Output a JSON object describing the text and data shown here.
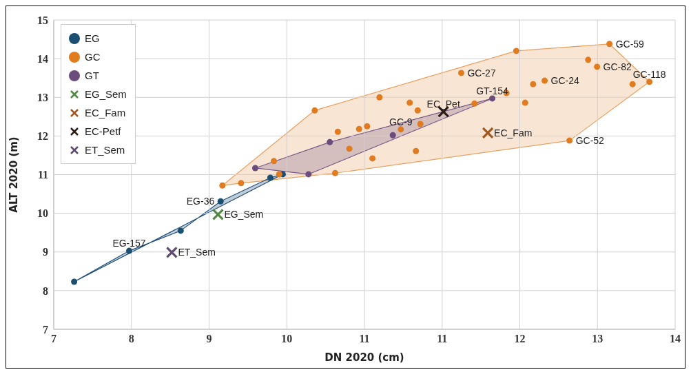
{
  "chart_data": {
    "type": "scatter",
    "xlabel": "DN 2020 (cm)",
    "ylabel": "ALT 2020 (m)",
    "xlim": [
      7,
      14
    ],
    "xticks": [
      7,
      {
        "value": 7.875,
        "label": "8"
      },
      {
        "value": 8.75,
        "label": "9"
      },
      {
        "value": 9.625,
        "label": "10"
      },
      {
        "value": 10.5,
        "label": "11"
      },
      {
        "value": 11.375,
        "label": "11"
      },
      {
        "value": 12.25,
        "label": "12"
      },
      {
        "value": 13.125,
        "label": "13"
      },
      14
    ],
    "ylim": [
      7,
      15
    ],
    "yticks": [
      7,
      8,
      9,
      10,
      11,
      12,
      13,
      14,
      15
    ],
    "grid": true,
    "legend": "top left",
    "series": [
      {
        "type": "area",
        "color": "#e8a060",
        "x": [
          8.9,
          9.94,
          12.21,
          13.26,
          13.71,
          12.81,
          10.17,
          9.11
        ],
        "values": [
          10.72,
          12.66,
          14.2,
          14.38,
          13.4,
          11.88,
          11.04,
          10.78
        ]
      },
      {
        "type": "area",
        "color": "#7a5a88",
        "x": [
          9.27,
          10.11,
          11.94,
          9.87
        ],
        "values": [
          11.17,
          11.84,
          12.97,
          11.01
        ]
      },
      {
        "type": "area",
        "color": "#1f4e79",
        "x": [
          7.23,
          7.85,
          8.43,
          8.88,
          9.44,
          9.58
        ],
        "values": [
          8.23,
          9.03,
          9.55,
          10.31,
          10.92,
          11.01
        ]
      },
      {
        "name": "EG",
        "marker": "circle",
        "color": "#1b4f72",
        "x": [
          7.23,
          7.85,
          8.43,
          8.88,
          9.44,
          9.58
        ],
        "values": [
          8.23,
          9.03,
          9.55,
          10.31,
          10.92,
          11.01
        ]
      },
      {
        "name": "GC",
        "marker": "circle",
        "color": "#e07b20",
        "x": [
          8.9,
          9.11,
          9.48,
          9.54,
          9.94,
          10.17,
          10.2,
          10.33,
          10.44,
          10.53,
          10.59,
          10.67,
          10.91,
          11.01,
          11.08,
          11.1,
          11.13,
          11.59,
          11.74,
          12.1,
          12.21,
          12.31,
          12.4,
          12.53,
          12.81,
          13.02,
          13.12,
          13.26,
          13.52,
          13.71
        ],
        "values": [
          10.72,
          10.78,
          11.35,
          11.01,
          12.66,
          11.04,
          12.11,
          11.67,
          12.18,
          12.25,
          11.42,
          13.0,
          12.17,
          12.86,
          11.61,
          12.66,
          12.31,
          13.63,
          12.84,
          13.11,
          14.2,
          12.86,
          13.34,
          13.43,
          11.88,
          13.97,
          13.79,
          14.38,
          13.34,
          13.4
        ]
      },
      {
        "name": "GT",
        "marker": "circle",
        "color": "#6b4c7a",
        "x": [
          9.27,
          9.87,
          10.11,
          10.82,
          11.94
        ],
        "values": [
          11.17,
          11.01,
          11.84,
          12.02,
          12.97
        ]
      },
      {
        "name": "EG_Sem",
        "marker": "cross",
        "color": "#4e8a3e",
        "x": [
          8.85
        ],
        "values": [
          9.97
        ]
      },
      {
        "name": "EC_Fam",
        "marker": "cross",
        "color": "#a0561e",
        "x": [
          11.89
        ],
        "values": [
          12.08
        ]
      },
      {
        "name": "EC-Petf",
        "marker": "cross",
        "color": "#2b1d14",
        "x": [
          11.39
        ],
        "values": [
          12.63
        ]
      },
      {
        "name": "ET_Sem",
        "marker": "cross",
        "color": "#5e4a72",
        "x": [
          8.33
        ],
        "values": [
          8.99
        ]
      }
    ],
    "annotations": [
      {
        "text": "EG-157",
        "x": 7.85,
        "y": 9.03
      },
      {
        "text": "EG-36",
        "x": 8.88,
        "y": 10.31
      },
      {
        "text": "EG_Sem",
        "x": 8.85,
        "y": 9.97
      },
      {
        "text": "ET_Sem",
        "x": 8.33,
        "y": 8.99
      },
      {
        "text": "GC-9",
        "x": 10.91,
        "y": 12.17
      },
      {
        "text": "EC_Pet",
        "x": 11.39,
        "y": 12.63
      },
      {
        "text": "EC_Fam",
        "x": 11.89,
        "y": 12.08
      },
      {
        "text": "GT-154",
        "x": 11.94,
        "y": 12.97
      },
      {
        "text": "GC-27",
        "x": 11.59,
        "y": 13.63
      },
      {
        "text": "GC-24",
        "x": 12.53,
        "y": 13.43
      },
      {
        "text": "GC-59",
        "x": 13.26,
        "y": 14.38
      },
      {
        "text": "GC-82",
        "x": 13.12,
        "y": 13.79
      },
      {
        "text": "GC-118",
        "x": 13.71,
        "y": 13.4
      },
      {
        "text": "GC-52",
        "x": 12.81,
        "y": 11.88
      }
    ]
  }
}
